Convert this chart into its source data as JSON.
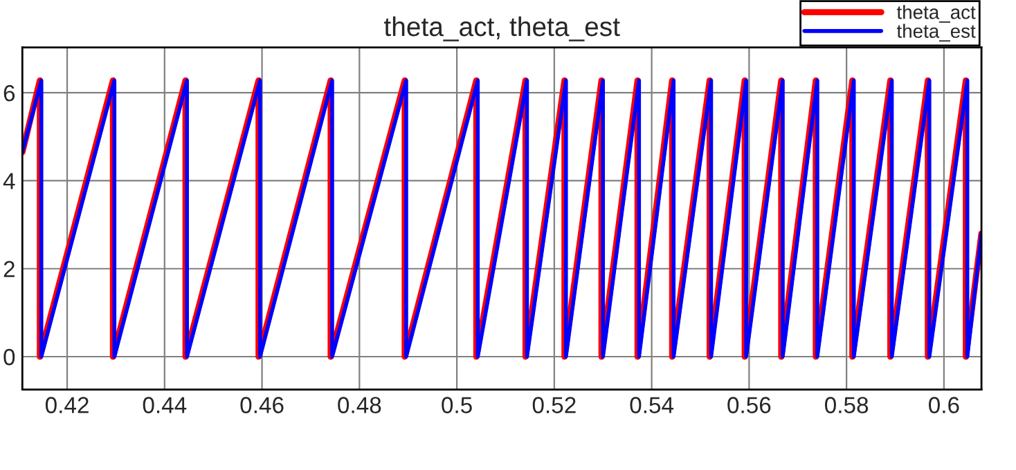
{
  "chart_data": {
    "type": "line",
    "title": "theta_act, theta_est",
    "xlim": [
      0.4108,
      0.6077
    ],
    "xticks": [
      0.42,
      0.44,
      0.46,
      0.48,
      0.5,
      0.52,
      0.54,
      0.56,
      0.58,
      0.6
    ],
    "ylim": [
      -0.75,
      7.03
    ],
    "yticks": [
      0,
      2,
      4,
      6
    ],
    "grid": true,
    "legend": "top right",
    "line_style": "solid",
    "marker": "none",
    "x": [
      0.4108,
      0.4147,
      0.4147,
      0.4297,
      0.4297,
      0.4446,
      0.4446,
      0.4596,
      0.4596,
      0.4744,
      0.4744,
      0.4896,
      0.4896,
      0.5043,
      0.5043,
      0.5144,
      0.5144,
      0.5224,
      0.5224,
      0.53,
      0.53,
      0.5374,
      0.5374,
      0.5445,
      0.5445,
      0.5522,
      0.5522,
      0.5594,
      0.5594,
      0.5669,
      0.5669,
      0.574,
      0.574,
      0.5815,
      0.5815,
      0.5893,
      0.5893,
      0.597,
      0.597,
      0.6048,
      0.6048,
      0.6077
    ],
    "series": [
      {
        "name": "theta_act",
        "color": "#ff0000",
        "x": [
          0.4108,
          0.4144,
          0.4144,
          0.4294,
          0.4294,
          0.4443,
          0.4443,
          0.4593,
          0.4593,
          0.4741,
          0.4741,
          0.4893,
          0.4893,
          0.504,
          0.504,
          0.5141,
          0.5141,
          0.5221,
          0.5221,
          0.5297,
          0.5297,
          0.5371,
          0.5371,
          0.5442,
          0.5442,
          0.5519,
          0.5519,
          0.5591,
          0.5591,
          0.5666,
          0.5666,
          0.5737,
          0.5737,
          0.5812,
          0.5812,
          0.589,
          0.589,
          0.5967,
          0.5967,
          0.6045,
          0.6045,
          0.6077
        ],
        "values": [
          4.65,
          6.28,
          0,
          6.28,
          0,
          6.28,
          0,
          6.28,
          0,
          6.28,
          0,
          6.28,
          0,
          6.28,
          0,
          6.28,
          0,
          6.28,
          0,
          6.28,
          0,
          6.28,
          0,
          6.28,
          0,
          6.28,
          0,
          6.28,
          0,
          6.28,
          0,
          6.28,
          0,
          6.28,
          0,
          6.28,
          0,
          6.28,
          0,
          6.28,
          0,
          2.8
        ]
      },
      {
        "name": "theta_est",
        "color": "#0000ff",
        "values": [
          4.65,
          6.28,
          0,
          6.28,
          0,
          6.28,
          0,
          6.28,
          0,
          6.28,
          0,
          6.28,
          0,
          6.28,
          0,
          6.28,
          0,
          6.28,
          0,
          6.28,
          0,
          6.28,
          0,
          6.28,
          0,
          6.28,
          0,
          6.28,
          0,
          6.28,
          0,
          6.28,
          0,
          6.28,
          0,
          6.28,
          0,
          6.28,
          0,
          6.28,
          0,
          2.8
        ]
      }
    ]
  }
}
